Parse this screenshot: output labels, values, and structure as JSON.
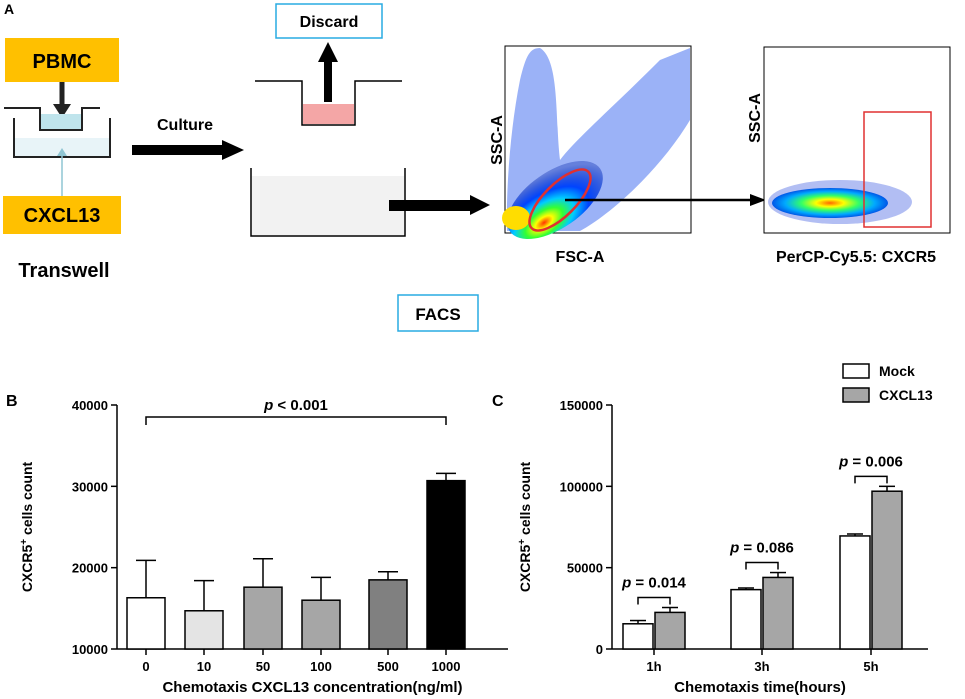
{
  "panel_a": {
    "label": "A",
    "pbmc": "PBMC",
    "cxcl13": "CXCL13",
    "transwell": "Transwell",
    "culture": "Culture",
    "discard": "Discard",
    "facs": "FACS",
    "plot1": {
      "y_label": "SSC-A",
      "x_label": "FSC-A"
    },
    "plot2": {
      "y_label": "SSC-A",
      "x_label": "PerCP-Cy5.5: CXCR5"
    },
    "colors": {
      "label_box": "#FFC000",
      "discard_border": "#29ABE2",
      "gate": "#E03030",
      "pink_medium": "#F4A6A6"
    }
  },
  "chart_data": [
    {
      "panel": "B",
      "type": "bar",
      "categories": [
        "0",
        "10",
        "50",
        "100",
        "500",
        "1000"
      ],
      "values": [
        16300,
        14700,
        17600,
        16000,
        18500,
        30700
      ],
      "errors": [
        4600,
        3700,
        3500,
        2800,
        1000,
        900
      ],
      "colors": [
        "#ffffff",
        "#e4e4e4",
        "#a6a6a6",
        "#a6a6a6",
        "#808080",
        "#000000"
      ],
      "title": "",
      "xlabel": "Chemotaxis CXCL13 concentration(ng/ml)",
      "ylabel_prefix": "CXCR5",
      "ylabel_sup": "+",
      "ylabel_suffix": " cells count",
      "ylim": [
        10000,
        40000
      ],
      "yticks": [
        10000,
        20000,
        30000,
        40000
      ],
      "ytick_labels": [
        "10000",
        "20000",
        "30000",
        "40000"
      ],
      "annotation": {
        "p_prefix": "p",
        "p_text": " < 0.001",
        "from": "0",
        "to": "1000"
      }
    },
    {
      "panel": "C",
      "type": "bar",
      "categories": [
        "1h",
        "3h",
        "5h"
      ],
      "series": [
        {
          "name": "Mock",
          "values": [
            15500,
            36500,
            69500
          ],
          "errors": [
            2000,
            1000,
            1200
          ],
          "color": "#ffffff"
        },
        {
          "name": "CXCL13",
          "values": [
            22500,
            44000,
            97000
          ],
          "errors": [
            3000,
            3000,
            3000
          ],
          "color": "#a6a6a6"
        }
      ],
      "title": "",
      "xlabel": "Chemotaxis time(hours)",
      "ylabel_prefix": "CXCR5",
      "ylabel_sup": "+",
      "ylabel_suffix": " cells count",
      "ylim": [
        0,
        150000
      ],
      "yticks": [
        0,
        50000,
        100000,
        150000
      ],
      "ytick_labels": [
        "0",
        "50000",
        "100000",
        "150000"
      ],
      "legend": "top-right",
      "annotations": [
        {
          "p_prefix": "p",
          "p_text": " = 0.014",
          "category": "1h"
        },
        {
          "p_prefix": "p",
          "p_text": " = 0.086",
          "category": "3h"
        },
        {
          "p_prefix": "p",
          "p_text": " = 0.006",
          "category": "5h"
        }
      ]
    }
  ]
}
